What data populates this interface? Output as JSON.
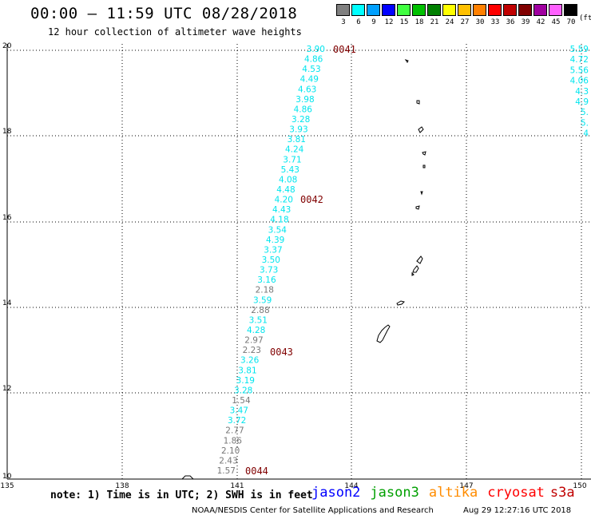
{
  "header": {
    "title": "00:00 – 11:59 UTC 08/28/2018",
    "subtitle": "12 hour collection of altimeter wave heights"
  },
  "colorbar": {
    "unit": "(ft)",
    "items": [
      {
        "label": "3",
        "color": "#808080"
      },
      {
        "label": "6",
        "color": "#00ffff"
      },
      {
        "label": "9",
        "color": "#00a0ff"
      },
      {
        "label": "12",
        "color": "#0000ff"
      },
      {
        "label": "15",
        "color": "#40ff40"
      },
      {
        "label": "18",
        "color": "#00c000"
      },
      {
        "label": "21",
        "color": "#008000"
      },
      {
        "label": "24",
        "color": "#ffff00"
      },
      {
        "label": "27",
        "color": "#ffc000"
      },
      {
        "label": "30",
        "color": "#ff8000"
      },
      {
        "label": "33",
        "color": "#ff0000"
      },
      {
        "label": "36",
        "color": "#c00000"
      },
      {
        "label": "39",
        "color": "#800000"
      },
      {
        "label": "42",
        "color": "#a000a0"
      },
      {
        "label": "45",
        "color": "#ff60ff"
      },
      {
        "label": "70",
        "color": "#000000"
      }
    ]
  },
  "axes": {
    "lon_ticks": [
      "135",
      "138",
      "141",
      "144",
      "147",
      "150"
    ],
    "lat_ticks": [
      "10",
      "12",
      "14",
      "16",
      "18",
      "20"
    ]
  },
  "track": {
    "points": [
      {
        "v": "3.90",
        "c": "cyan"
      },
      {
        "v": "4.86",
        "c": "cyan"
      },
      {
        "v": "4.53",
        "c": "cyan"
      },
      {
        "v": "4.49",
        "c": "cyan"
      },
      {
        "v": "4.63",
        "c": "cyan"
      },
      {
        "v": "3.98",
        "c": "cyan"
      },
      {
        "v": "4.86",
        "c": "cyan"
      },
      {
        "v": "3.28",
        "c": "cyan"
      },
      {
        "v": "3.93",
        "c": "cyan"
      },
      {
        "v": "3.81",
        "c": "cyan"
      },
      {
        "v": "4.24",
        "c": "cyan"
      },
      {
        "v": "3.71",
        "c": "cyan"
      },
      {
        "v": "5.43",
        "c": "cyan"
      },
      {
        "v": "4.08",
        "c": "cyan"
      },
      {
        "v": "4.48",
        "c": "cyan"
      },
      {
        "v": "4.20",
        "c": "cyan"
      },
      {
        "v": "4.43",
        "c": "cyan"
      },
      {
        "v": "4.18",
        "c": "cyan"
      },
      {
        "v": "3.54",
        "c": "cyan"
      },
      {
        "v": "4.39",
        "c": "cyan"
      },
      {
        "v": "3.37",
        "c": "cyan"
      },
      {
        "v": "3.50",
        "c": "cyan"
      },
      {
        "v": "3.73",
        "c": "cyan"
      },
      {
        "v": "3.16",
        "c": "cyan"
      },
      {
        "v": "2.18",
        "c": "gray"
      },
      {
        "v": "3.59",
        "c": "cyan"
      },
      {
        "v": "2.88",
        "c": "gray"
      },
      {
        "v": "3.51",
        "c": "cyan"
      },
      {
        "v": "4.28",
        "c": "cyan"
      },
      {
        "v": "2.97",
        "c": "gray"
      },
      {
        "v": "2.23",
        "c": "gray"
      },
      {
        "v": "3.26",
        "c": "cyan"
      },
      {
        "v": "3.81",
        "c": "cyan"
      },
      {
        "v": "3.19",
        "c": "cyan"
      },
      {
        "v": "3.28",
        "c": "cyan"
      },
      {
        "v": "1.54",
        "c": "gray"
      },
      {
        "v": "3.47",
        "c": "cyan"
      },
      {
        "v": "3.72",
        "c": "cyan"
      },
      {
        "v": "2.77",
        "c": "gray"
      },
      {
        "v": "1.86",
        "c": "gray"
      },
      {
        "v": "2.10",
        "c": "gray"
      },
      {
        "v": "2.43",
        "c": "gray"
      },
      {
        "v": "1.57",
        "c": "gray"
      }
    ],
    "right_points": [
      {
        "v": "5.59",
        "c": "cyan"
      },
      {
        "v": "4.72",
        "c": "cyan"
      },
      {
        "v": "5.56",
        "c": "cyan"
      },
      {
        "v": "4.06",
        "c": "cyan"
      },
      {
        "v": "4.3",
        "c": "cyan"
      },
      {
        "v": "4.9",
        "c": "cyan"
      },
      {
        "v": "5.",
        "c": "cyan"
      },
      {
        "v": "5.",
        "c": "cyan"
      },
      {
        "v": "4",
        "c": "cyan"
      }
    ],
    "time_labels": [
      "0041",
      "0042",
      "0043",
      "0044"
    ]
  },
  "footer": {
    "note": "note: 1) Time is in UTC; 2) SWH is in feet",
    "satellites": [
      {
        "name": "jason2",
        "color": "#0000ff"
      },
      {
        "name": "jason3",
        "color": "#00a000"
      },
      {
        "name": "altika",
        "color": "#ff8c00"
      },
      {
        "name": "cryosat",
        "color": "#ff0000"
      },
      {
        "name": "s3a",
        "color": "#c00000"
      }
    ],
    "credit": "NOAA/NESDIS Center for Satellite Applications and Research",
    "timestamp": "Aug 29 12:27:16 UTC 2018"
  }
}
